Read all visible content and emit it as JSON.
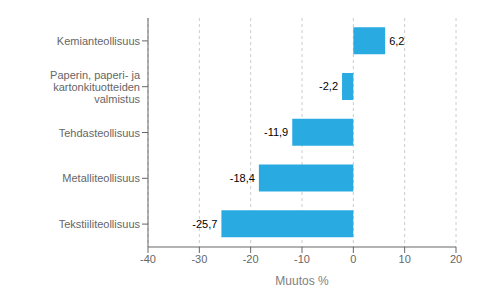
{
  "chart_data": {
    "type": "bar",
    "orientation": "horizontal",
    "categories": [
      "Tekstiiliteollisuus",
      "Metalliteollisuus",
      "Tehdasteollisuus",
      "Paperin, paperi- ja kartonkituotteiden valmistus",
      "Kemianteollisuus"
    ],
    "values": [
      -25.7,
      -18.4,
      -11.9,
      -2.2,
      6.2
    ],
    "value_labels": [
      "-25,7",
      "-18,4",
      "-11,9",
      "-2,2",
      "6,2"
    ],
    "data_labels": true,
    "color": "#29abe2",
    "xlabel": "Muutos %",
    "xlim": [
      -40,
      20
    ],
    "xticks": [
      -40,
      -30,
      -20,
      -10,
      0,
      10,
      20
    ],
    "grid": true
  }
}
